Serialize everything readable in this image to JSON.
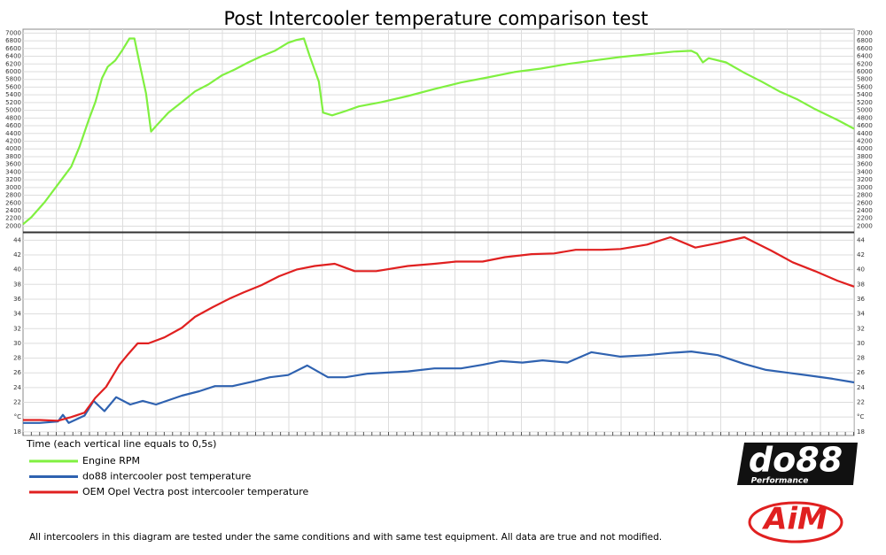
{
  "chart_data": [
    {
      "type": "line",
      "title": "Post Intercooler temperature comparison test",
      "xlim": [
        0,
        100
      ],
      "ylim": [
        1850,
        7100
      ],
      "yticks": [
        2000,
        2200,
        2400,
        2600,
        2800,
        3000,
        3200,
        3400,
        3600,
        3800,
        4000,
        4200,
        4400,
        4600,
        4800,
        5000,
        5200,
        5400,
        5600,
        5800,
        6000,
        6200,
        6400,
        6600,
        6800,
        7000
      ],
      "grid": true,
      "series": [
        {
          "name": "Engine RPM",
          "color": "#80f040",
          "x": [
            0,
            1,
            2.6,
            4.2,
            5.8,
            6.8,
            7.9,
            8.7,
            9.5,
            10.2,
            11.1,
            11.9,
            12.8,
            13.4,
            14.1,
            14.8,
            15.4,
            16.2,
            17.5,
            19.1,
            20.7,
            22.3,
            23.9,
            25.5,
            27.1,
            28.7,
            30.3,
            31.9,
            32.9,
            33.8,
            34.5,
            35.6,
            36.1,
            37.2,
            38.8,
            40.4,
            43.1,
            46.3,
            49.5,
            52.7,
            55.9,
            59.1,
            62.3,
            65.5,
            68.7,
            71.9,
            75.1,
            78.3,
            80.4,
            81.1,
            81.8,
            82.5,
            84.6,
            86.8,
            88.9,
            91.0,
            93.2,
            95.3,
            98.0,
            100
          ],
          "values": [
            2050,
            2230,
            2620,
            3080,
            3540,
            4060,
            4750,
            5210,
            5830,
            6130,
            6290,
            6540,
            6860,
            6860,
            6130,
            5440,
            4450,
            4640,
            4940,
            5210,
            5490,
            5670,
            5900,
            6060,
            6240,
            6400,
            6540,
            6750,
            6820,
            6860,
            6400,
            5740,
            4940,
            4870,
            4980,
            5100,
            5210,
            5370,
            5550,
            5720,
            5850,
            5990,
            6080,
            6200,
            6290,
            6380,
            6450,
            6520,
            6540,
            6470,
            6240,
            6350,
            6240,
            5970,
            5740,
            5490,
            5280,
            5030,
            4750,
            4520
          ]
        }
      ]
    },
    {
      "type": "line",
      "xlabel": "Time (each vertical line equals to 0,5s)",
      "xlim": [
        0,
        100
      ],
      "ylim": [
        17.5,
        45
      ],
      "yticks": [
        18,
        {
          "value": 20,
          "label": "°C"
        },
        22,
        24,
        26,
        28,
        30,
        32,
        34,
        36,
        38,
        40,
        42,
        44
      ],
      "grid": true,
      "series": [
        {
          "name": "do88 intercooler post temperature",
          "color": "#2f62b0",
          "x": [
            0,
            2.0,
            4.2,
            4.8,
            5.5,
            7.4,
            8.5,
            9.8,
            11.2,
            12.9,
            14.4,
            16.0,
            19.1,
            21.2,
            23.1,
            25.2,
            27.6,
            29.7,
            31.9,
            34.2,
            36.7,
            38.8,
            41.5,
            46.3,
            49.5,
            52.7,
            55.3,
            57.5,
            60.1,
            62.5,
            65.5,
            68.4,
            71.9,
            75.1,
            77.9,
            80.4,
            83.6,
            86.8,
            89.4,
            92.1,
            94.8,
            97.4,
            100
          ],
          "values": [
            19.2,
            19.2,
            19.4,
            20.3,
            19.2,
            20.2,
            22.2,
            20.8,
            22.7,
            21.7,
            22.2,
            21.7,
            22.9,
            23.5,
            24.2,
            24.2,
            24.8,
            25.4,
            25.7,
            27.0,
            25.4,
            25.4,
            25.9,
            26.2,
            26.6,
            26.6,
            27.1,
            27.6,
            27.4,
            27.7,
            27.4,
            28.8,
            28.2,
            28.4,
            28.7,
            28.9,
            28.4,
            27.2,
            26.4,
            26.0,
            25.6,
            25.2,
            24.7
          ]
        },
        {
          "name": "OEM Opel Vectra post intercooler temperature",
          "color": "#e02020",
          "x": [
            0,
            2.0,
            4.2,
            5.8,
            7.4,
            8.7,
            10.0,
            11.6,
            12.7,
            13.8,
            15.1,
            17.0,
            19.1,
            20.7,
            22.8,
            24.9,
            26.5,
            28.7,
            30.8,
            32.9,
            35.1,
            37.5,
            39.9,
            42.5,
            46.3,
            49.5,
            52.1,
            55.3,
            58.0,
            61.2,
            63.9,
            66.5,
            69.7,
            71.9,
            75.1,
            77.9,
            80.9,
            83.6,
            86.8,
            90.0,
            92.6,
            95.3,
            98.0,
            100
          ],
          "values": [
            19.6,
            19.6,
            19.5,
            20.0,
            20.6,
            22.6,
            24.1,
            27.1,
            28.6,
            30.0,
            30.0,
            30.8,
            32.1,
            33.6,
            34.9,
            36.1,
            36.9,
            37.9,
            39.1,
            40.0,
            40.5,
            40.8,
            39.8,
            39.8,
            40.5,
            40.8,
            41.1,
            41.1,
            41.7,
            42.1,
            42.2,
            42.7,
            42.7,
            42.8,
            43.4,
            44.4,
            43.0,
            43.6,
            44.4,
            42.6,
            41.0,
            39.8,
            38.5,
            37.7
          ]
        }
      ]
    }
  ],
  "footnote": "All intercoolers in this diagram are tested under the same conditions and with same test equipment. All data are true and not modified.",
  "logos": {
    "do88": "do88",
    "do88_sub": "Performance",
    "aim": "AiM"
  }
}
